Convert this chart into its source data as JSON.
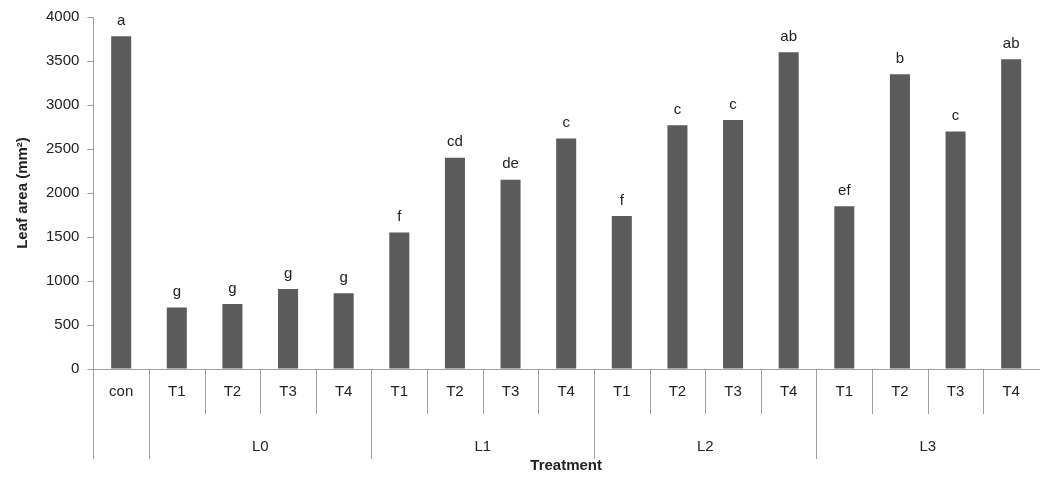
{
  "chart_data": {
    "type": "bar",
    "xlabel": "Treatment",
    "ylabel": "Leaf area (mm²)",
    "categories": [
      "con",
      "T1",
      "T2",
      "T3",
      "T4",
      "T1",
      "T2",
      "T3",
      "T4",
      "T1",
      "T2",
      "T3",
      "T4",
      "T1",
      "T2",
      "T3",
      "T4"
    ],
    "values": [
      3780,
      700,
      740,
      910,
      860,
      1550,
      2400,
      2150,
      2620,
      1740,
      2770,
      2830,
      3600,
      1850,
      3350,
      2700,
      3520
    ],
    "value_labels": [
      "a",
      "g",
      "g",
      "g",
      "g",
      "f",
      "cd",
      "de",
      "c",
      "f",
      "c",
      "c",
      "ab",
      "ef",
      "b",
      "c",
      "ab"
    ],
    "color": "#5b5b5b",
    "annotations": [
      "L0",
      "L1",
      "L2",
      "L3"
    ],
    "ylim": [
      0,
      4000
    ],
    "yticks": [
      0,
      500,
      1000,
      1500,
      2000,
      2500,
      3000,
      3500,
      4000
    ],
    "grid": false,
    "legend": false
  }
}
